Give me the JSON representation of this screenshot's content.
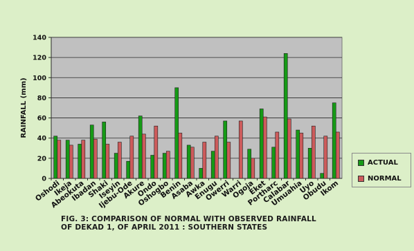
{
  "chart_data": {
    "type": "bar",
    "categories": [
      "Oshodi",
      "Ikeja",
      "Abeokuta",
      "Ibadan",
      "Shaki",
      "Iseyin",
      "Ijebu-Ode",
      "Akure",
      "Ondo",
      "Oshogbo",
      "Benin",
      "Asaba",
      "Awka",
      "Enugu",
      "Owerri",
      "Warri",
      "Ogoja",
      "Eket",
      "Portharc",
      "Calabar",
      "Umuahia",
      "Uyo",
      "Obudu",
      "Ikom"
    ],
    "series": [
      {
        "name": "ACTUAL",
        "color": "#169a16",
        "values": [
          42,
          38,
          34,
          53,
          56,
          25,
          17,
          62,
          23,
          25,
          90,
          33,
          10,
          27,
          57,
          0,
          29,
          69,
          31,
          124,
          48,
          30,
          5,
          75
        ]
      },
      {
        "name": "NORMAL",
        "color": "#cc5b5b",
        "values": [
          38,
          33,
          38,
          39,
          34,
          36,
          42,
          44,
          52,
          27,
          45,
          31,
          36,
          42,
          36,
          57,
          20,
          61,
          46,
          59,
          45,
          52,
          42,
          46
        ]
      }
    ],
    "ylabel": "RAINFALL (mm)",
    "xlabel": "",
    "ylim": [
      0,
      140
    ],
    "yticks": [
      0,
      20,
      40,
      60,
      80,
      100,
      120,
      140
    ],
    "grid": true,
    "legend_position": "right",
    "plot_background": "#c0c0c0",
    "caption_lines": [
      "FIG. 3: COMPARISON OF NORMAL  WITH OBSERVED RAINFALL",
      "OF  DEKAD 1, OF APRIL 2011 : SOUTHERN STATES"
    ]
  }
}
